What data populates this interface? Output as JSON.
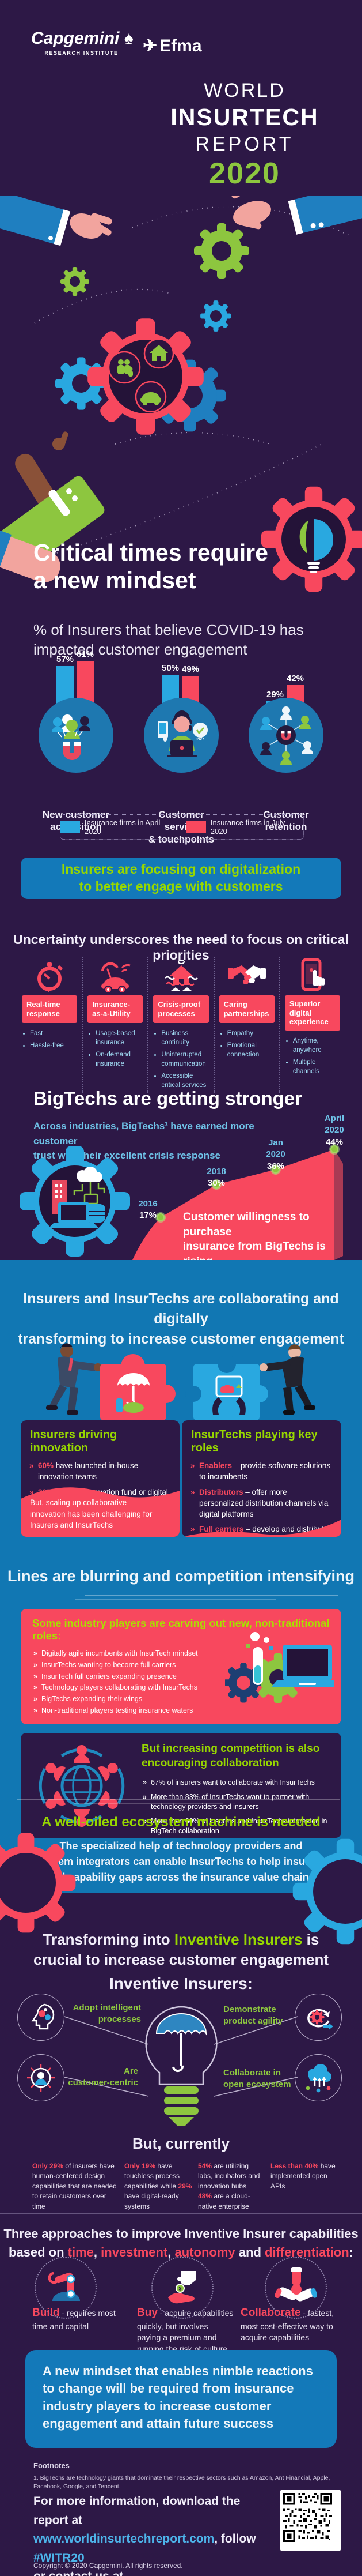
{
  "header": {
    "brand": "Capgemini",
    "brand_sub": "RESEARCH INSTITUTE",
    "partner": "Efma",
    "title": {
      "l1": "WORLD",
      "l2": "INSURTECH",
      "l3": "REPORT",
      "year": "2020"
    }
  },
  "intro": {
    "heading": "Critical times require\na new mindset",
    "subheading": "% of Insurers that believe COVID-19 has\nimpacted customer engagement"
  },
  "chart_data": [
    {
      "type": "bar",
      "title": "% of Insurers that believe COVID-19 has impacted customer engagement",
      "categories": [
        "New customer\nacquisition",
        "Customer service\n& touchpoints",
        "Customer\nretention"
      ],
      "series": [
        {
          "name": "Insurance firms in April 2020",
          "color": "#29a8e0",
          "values": [
            57,
            50,
            29
          ]
        },
        {
          "name": "Insurance firms in July 2020",
          "color": "#f8485e",
          "values": [
            61,
            49,
            42
          ]
        }
      ],
      "unit": "%",
      "ylim": [
        0,
        70
      ],
      "legend_position": "bottom",
      "grid": false
    },
    {
      "type": "area",
      "x": [
        "2016",
        "2018",
        "Jan\n2020",
        "April\n2020"
      ],
      "values": [
        17,
        30,
        36,
        44
      ],
      "unit": "%",
      "color": "#f8485e",
      "dot_color": "#8dc63f",
      "ylim": [
        0,
        50
      ],
      "annotation": "Customer willingness to purchase\ninsurance from BigTechs is rising"
    }
  ],
  "legend": {
    "april": "Insurance firms in April 2020",
    "july": "Insurance firms in July 2020"
  },
  "banner_digitalization": "Insurers are focusing on digitalization\nto better engage with customers",
  "priorities": {
    "heading": "Uncertainty underscores the need to focus on critical priorities",
    "items": [
      {
        "icon": "stopwatch-icon",
        "title": "Real-time\nresponse",
        "bullets": [
          "Fast",
          "Hassle-free"
        ]
      },
      {
        "icon": "car-umbrella-icon",
        "title": "Insurance-\nas-a-Utility",
        "bullets": [
          "Usage-based insurance",
          "On-demand insurance"
        ]
      },
      {
        "icon": "flood-house-icon",
        "title": "Crisis-proof\nprocesses",
        "bullets": [
          "Business continuity",
          "Uninterrupted communication",
          "Accessible critical services"
        ]
      },
      {
        "icon": "handshake-icon",
        "title": "Caring\npartnerships",
        "bullets": [
          "Empathy",
          "Emotional connection"
        ]
      },
      {
        "icon": "phone-touch-icon",
        "title": "Superior digital\nexperience",
        "bullets": [
          "Anytime, anywhere",
          "Multiple channels"
        ]
      }
    ]
  },
  "bigtech": {
    "heading": "BigTechs are getting stronger",
    "subtext": [
      {
        "t": "Across industries, BigTechs"
      },
      {
        "t": "1",
        "c": "sup"
      },
      {
        "t": " have earned more customer\ntrust with their excellent crisis response"
      }
    ]
  },
  "collaboration": {
    "heading": "Insurers and InsurTechs are collaborating and digitally\ntransforming to increase customer engagement",
    "left_card": {
      "title": "Insurers driving innovation",
      "bullets": [
        [
          {
            "t": "60%",
            "c": "red"
          },
          {
            "t": " have launched in-house innovation teams"
          }
        ],
        [
          {
            "t": "30%",
            "c": "red"
          },
          {
            "t": " created innovation fund or digital spin-off"
          }
        ]
      ],
      "callout": "But, scaling up collaborative\ninnovation has been challenging for\nInsurers and InsurTechs"
    },
    "right_card": {
      "title": "InsurTechs playing key roles",
      "bullets": [
        [
          {
            "t": "Enablers",
            "c": "red"
          },
          {
            "t": " – provide software solutions to incumbents"
          }
        ],
        [
          {
            "t": "Distributors",
            "c": "red"
          },
          {
            "t": " – offer more personalized distribution channels via digital platforms"
          }
        ],
        [
          {
            "t": "Full carriers",
            "c": "red"
          },
          {
            "t": " – develop and distribute insurance products"
          }
        ]
      ]
    }
  },
  "competition": {
    "heading": "Lines are blurring and competition intensifying",
    "roles_card": {
      "title": "Some industry players are carving out new, non-traditional roles:",
      "bullets": [
        "Digitally agile incumbents with InsurTech mindset",
        "InsurTechs wanting to become full carriers",
        "InsurTech full carriers expanding presence",
        "Technology players collaborating with InsurTechs",
        "BigTechs expanding their wings",
        "Non-traditional players testing insurance waters"
      ]
    },
    "collab_card": {
      "title": "But increasing competition is also\nencouraging collaboration",
      "bullets": [
        "67% of insurers want to collaborate with InsurTechs",
        "More than 83% of InsurTechs want to partner with technology providers and insurers",
        "More than 60% of insurers and InsurTechs interested in BigTech collaboration"
      ]
    }
  },
  "ecosystem": {
    "heading": "A well-oiled ecosystem machine is needed",
    "body": "The specialized help of technology providers and\nsystem integrators can enable InsurTechs to help insurers\nfill capability gaps across the insurance value chain"
  },
  "inventive": {
    "heading": [
      {
        "t": "Transforming into "
      },
      {
        "t": "Inventive Insurers",
        "c": "green"
      },
      {
        "t": " is\ncrucial to increase customer engagement"
      }
    ],
    "subheading": "Inventive Insurers:",
    "features": [
      {
        "icon": "brain-gears-icon",
        "label": "Adopt intelligent\nprocesses"
      },
      {
        "icon": "agile-cycle-icon",
        "label": "Demonstrate\nproduct agility"
      },
      {
        "icon": "customer-centric-icon",
        "label": "Are\ncustomer-centric"
      },
      {
        "icon": "open-ecosystem-icon",
        "label": "Collaborate in\nopen ecosystem"
      }
    ]
  },
  "currently": {
    "heading": "But, currently",
    "stats": [
      [
        {
          "t": "Only 29%",
          "c": "red"
        },
        {
          "t": " of insurers have human-centered design capabilities that are needed to retain customers over time"
        }
      ],
      [
        {
          "t": "Only 19%",
          "c": "red"
        },
        {
          "t": " have touchless process capabilities while "
        },
        {
          "t": "29%",
          "c": "red"
        },
        {
          "t": " have digital-ready systems"
        }
      ],
      [
        {
          "t": "54%",
          "c": "red"
        },
        {
          "t": " are utilizing labs, incubators and innovation hubs\n"
        },
        {
          "t": "48%",
          "c": "red"
        },
        {
          "t": " are a cloud-native enterprise"
        }
      ],
      [
        {
          "t": "Less than 40%",
          "c": "red"
        },
        {
          "t": " have implemented open APIs"
        }
      ]
    ]
  },
  "approaches": {
    "heading": [
      {
        "t": "Three approaches to improve Inventive Insurer capabilities\nbased on "
      },
      {
        "t": "time",
        "c": "red"
      },
      {
        "t": ", "
      },
      {
        "t": "investment",
        "c": "red"
      },
      {
        "t": ", "
      },
      {
        "t": "autonomy",
        "c": "red"
      },
      {
        "t": " and "
      },
      {
        "t": "differentiation",
        "c": "red"
      },
      {
        "t": ":"
      }
    ],
    "items": [
      {
        "icon": "robot-arm-icon",
        "name": "Build",
        "desc": " - requires most time and capital"
      },
      {
        "icon": "buy-hand-icon",
        "name": "Buy",
        "desc": " - acquire capabilities quickly, but involves paying a premium and running the risk of culture and Tech shocks"
      },
      {
        "icon": "collaborate-hands-icon",
        "name": "Collaborate",
        "desc": " - fastest, most cost-effective way to acquire capabilities"
      }
    ]
  },
  "mindset_box": "A new mindset that enables nimble reactions to change will be required from insurance industry players to increase customer engagement and attain future success",
  "footnotes": {
    "title": "Footnotes",
    "items": [
      "1.    BigTechs are technology giants that dominate their respective sectors such as Amazon, Ant Financial, Apple, Facebook, Google, and Tencent."
    ]
  },
  "footer": {
    "text": [
      {
        "t": "For more information, download the report at\n"
      },
      {
        "t": "www.worldinsurtechreport.com",
        "c": "blue",
        "n": "report-link",
        "i": true
      },
      {
        "t": ", follow "
      },
      {
        "t": "#WITR20",
        "c": "blue",
        "n": "hashtag-link",
        "i": true
      },
      {
        "t": "\nor contact us at "
      },
      {
        "t": "insurance@capgemini.com",
        "c": "blue",
        "n": "email-link",
        "i": true
      }
    ],
    "copyright": "Copyright © 2020 Capgemini. All rights reserved."
  },
  "colors": {
    "background": "#2d1846",
    "section_blue": "#1177b3",
    "red": "#f8485e",
    "blue": "#29a8e0",
    "green": "#8dc63f",
    "heading_green": "#97d700",
    "cyan_text": "#8ed1f0"
  }
}
